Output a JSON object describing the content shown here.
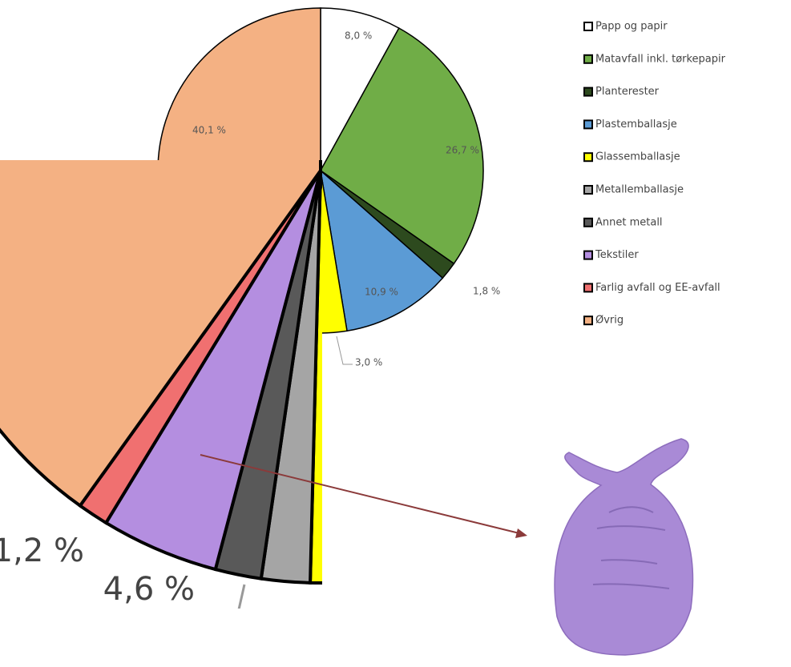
{
  "chart_data": {
    "type": "pie",
    "categories": [
      "Papp og papir",
      "Matavfall inkl. tørkepapir",
      "Planterester",
      "Plastemballasje",
      "Glassemballasje",
      "Metallemballasje",
      "Annet metall",
      "Tekstiler",
      "Farlig avfall og EE-avfall",
      "Øvrig"
    ],
    "values": [
      8.0,
      26.7,
      1.8,
      10.9,
      3.0,
      1.9,
      1.8,
      4.6,
      1.2,
      40.1
    ],
    "value_labels": [
      "8,0 %",
      "26,7 %",
      "1,8 %",
      "10,9 %",
      "3,0 %",
      null,
      null,
      "4,6 %",
      "1,2 %",
      "40,1 %"
    ],
    "colors": [
      "#ffffff",
      "#70ad47",
      "#2d4a1e",
      "#5b9bd5",
      "#ffff00",
      "#a5a5a5",
      "#595959",
      "#b48ee0",
      "#f07070",
      "#f4b183"
    ]
  }
}
